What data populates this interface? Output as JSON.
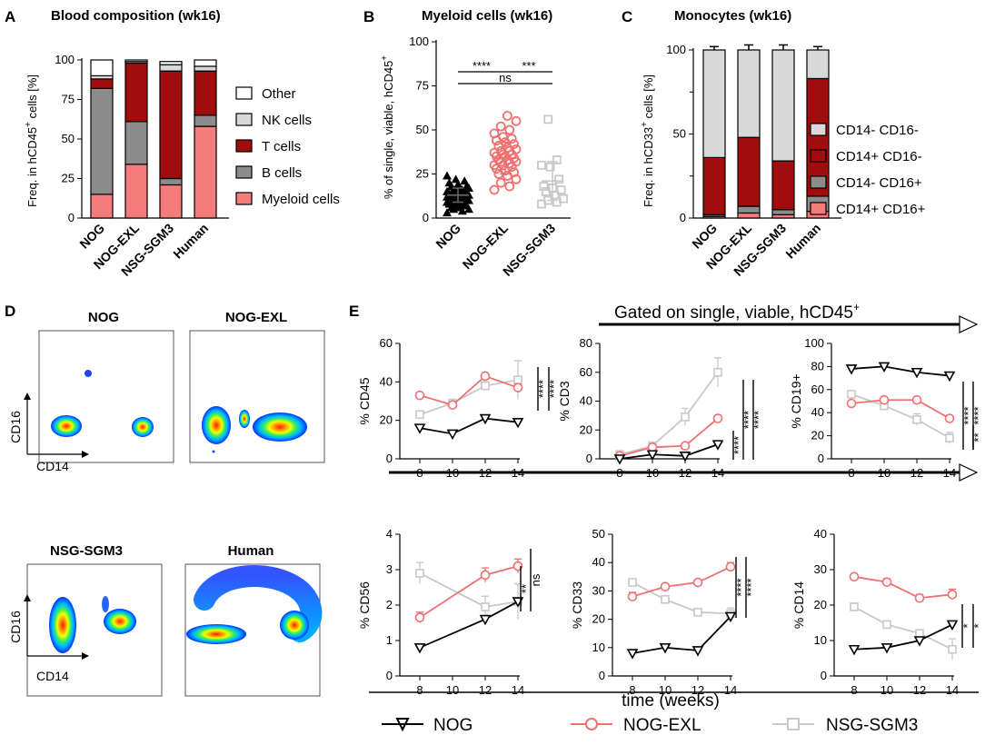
{
  "panels": {
    "A": {
      "label": "A",
      "title": "Blood composition (wk16)",
      "ylabel_main": "Freq. in hCD45",
      "ylabel_sup": "+",
      "ylabel_tail": " cells [%]",
      "legend_labels": [
        "Other",
        "NK cells",
        "T cells",
        "B cells",
        "Myeloid cells"
      ]
    },
    "B": {
      "label": "B",
      "title": "Myeloid cells (wk16)",
      "ylabel_main": "% of single, viable, hCD45",
      "ylabel_sup": "+",
      "sig_labels": [
        "****",
        "***",
        "ns"
      ]
    },
    "C": {
      "label": "C",
      "title": "Monocytes (wk16)",
      "ylabel_main": "Freq. in hCD33",
      "ylabel_sup": "+",
      "ylabel_tail": " cells [%]",
      "legend_labels": [
        "CD14- CD16-",
        "CD14+ CD16-",
        "CD14- CD16+",
        "CD14+ CD16+"
      ]
    },
    "D": {
      "label": "D",
      "titles": [
        "NOG",
        "NOG-EXL",
        "NSG-SGM3",
        "Human"
      ],
      "x_axis": "CD14",
      "y_axis": "CD16"
    },
    "E": {
      "label": "E",
      "gated_main": "Gated on single, viable, hCD45",
      "gated_sup": "+",
      "x_axis_label": "time (weeks)",
      "legend": [
        "NOG",
        "NOG-EXL",
        "NSG-SGM3"
      ]
    }
  },
  "colors": {
    "other": "#ffffff",
    "nk": "#d9d9d9",
    "tcells": "#a10c0c",
    "bcells": "#8c8c8c",
    "myeloid": "#f47c7c",
    "nog": "#000000",
    "exl": "#f07070",
    "sgm3": "#c8c8c8"
  },
  "chart_data": [
    {
      "id": "A",
      "type": "bar",
      "stacked": true,
      "title": "Blood composition (wk16)",
      "categories": [
        "NOG",
        "NOG-EXL",
        "NSG-SGM3",
        "Human"
      ],
      "ylim": [
        0,
        100
      ],
      "yticks": [
        0,
        25,
        50,
        75,
        100
      ],
      "series": [
        {
          "name": "Myeloid cells",
          "color": "myeloid",
          "values": [
            15,
            34,
            21,
            58
          ],
          "errors": [
            1.5,
            2,
            1.5,
            1
          ]
        },
        {
          "name": "B cells",
          "color": "bcells",
          "values": [
            67,
            27,
            4,
            7
          ],
          "errors": [
            1.5,
            2.5,
            1.5,
            1
          ]
        },
        {
          "name": "T cells",
          "color": "tcells",
          "values": [
            6,
            37,
            68,
            28
          ],
          "errors": [
            2,
            1.5,
            1.5,
            1
          ]
        },
        {
          "name": "NK cells",
          "color": "nk",
          "values": [
            2,
            1,
            4,
            3
          ],
          "errors": [
            0.5,
            0.5,
            1,
            0.5
          ]
        },
        {
          "name": "Other",
          "color": "other",
          "values": [
            10,
            1,
            2,
            4
          ],
          "errors": [
            0,
            0,
            0,
            0
          ]
        }
      ]
    },
    {
      "id": "B",
      "type": "scatter",
      "title": "Myeloid cells (wk16)",
      "categories": [
        "NOG",
        "NOG-EXL",
        "NSG-SGM3"
      ],
      "ylim": [
        0,
        100
      ],
      "yticks": [
        0,
        25,
        50,
        75,
        100
      ],
      "series": [
        {
          "name": "NOG",
          "marker": "triangle",
          "color": "nog",
          "mean": 13,
          "sd": 4,
          "values": [
            3,
            4,
            5,
            5,
            6,
            6,
            7,
            7,
            8,
            8,
            8,
            9,
            9,
            9,
            10,
            10,
            10,
            11,
            11,
            11,
            12,
            12,
            12,
            12,
            13,
            13,
            13,
            13,
            14,
            14,
            14,
            15,
            15,
            15,
            16,
            16,
            17,
            17,
            18,
            18,
            19,
            20,
            21,
            22,
            24
          ]
        },
        {
          "name": "NOG-EXL",
          "marker": "circle",
          "color": "exl",
          "mean": 34,
          "sd": 9,
          "values": [
            16,
            18,
            20,
            22,
            24,
            25,
            26,
            27,
            28,
            29,
            30,
            30,
            31,
            32,
            32,
            33,
            33,
            34,
            35,
            35,
            36,
            36,
            37,
            38,
            38,
            39,
            40,
            41,
            42,
            43,
            44,
            45,
            46,
            48,
            50,
            52,
            55,
            58
          ]
        },
        {
          "name": "NSG-SGM3",
          "marker": "square",
          "color": "sgm3",
          "mean": 21,
          "sd": 11,
          "values": [
            8,
            9,
            10,
            11,
            13,
            15,
            16,
            17,
            18,
            22,
            29,
            30,
            33,
            56
          ]
        }
      ],
      "significance": [
        {
          "from": 0,
          "to": 1,
          "label": "****",
          "level": 0
        },
        {
          "from": 1,
          "to": 2,
          "label": "***",
          "level": 0
        },
        {
          "from": 0,
          "to": 2,
          "label": "ns",
          "level": 1
        }
      ]
    },
    {
      "id": "C",
      "type": "bar",
      "stacked": true,
      "title": "Monocytes (wk16)",
      "categories": [
        "NOG",
        "NOG-EXL",
        "NSG-SGM3",
        "Human"
      ],
      "ylim": [
        0,
        100
      ],
      "yticks": [
        0,
        50,
        100
      ],
      "yticks_all": [
        0,
        25,
        50,
        75,
        100
      ],
      "series": [
        {
          "name": "CD14+ CD16+",
          "color": "myeloid",
          "values": [
            1,
            3,
            2,
            4
          ],
          "errors": [
            0.5,
            0.5,
            0.5,
            0.5
          ]
        },
        {
          "name": "CD14- CD16+",
          "color": "bcells",
          "values": [
            1,
            4,
            3,
            9
          ],
          "errors": [
            0.5,
            1.5,
            1,
            1.5
          ]
        },
        {
          "name": "CD14+ CD16-",
          "color": "tcells",
          "values": [
            34,
            41,
            29,
            70
          ],
          "errors": [
            2,
            4,
            3.5,
            1.5
          ]
        },
        {
          "name": "CD14- CD16-",
          "color": "nk",
          "values": [
            64,
            52,
            66,
            17
          ],
          "errors": [
            2,
            3,
            3,
            2
          ]
        }
      ]
    },
    {
      "id": "E-CD45",
      "type": "line",
      "ylabel": "% CD45",
      "x": [
        8,
        10,
        12,
        14
      ],
      "ylim": [
        0,
        60
      ],
      "yticks": [
        0,
        20,
        40,
        60
      ],
      "series": [
        {
          "name": "NOG",
          "values": [
            16,
            13,
            21,
            19
          ],
          "errors": [
            1,
            1,
            1,
            1
          ]
        },
        {
          "name": "NOG-EXL",
          "values": [
            33,
            28,
            43,
            37
          ],
          "errors": [
            1,
            1,
            1,
            2
          ]
        },
        {
          "name": "NSG-SGM3",
          "values": [
            23,
            29,
            38,
            41
          ],
          "errors": [
            1,
            1.5,
            2,
            10
          ]
        }
      ],
      "significance": [
        {
          "label": "****"
        },
        {
          "label": "****"
        }
      ]
    },
    {
      "id": "E-CD3",
      "type": "line",
      "ylabel": "% CD3",
      "x": [
        8,
        10,
        12,
        14
      ],
      "ylim": [
        0,
        80
      ],
      "yticks": [
        0,
        20,
        40,
        60,
        80
      ],
      "series": [
        {
          "name": "NOG",
          "values": [
            0,
            3,
            2,
            10
          ],
          "errors": [
            0.5,
            0.5,
            0.5,
            1
          ]
        },
        {
          "name": "NOG-EXL",
          "values": [
            2,
            8,
            9,
            28
          ],
          "errors": [
            0.5,
            1,
            1,
            2
          ]
        },
        {
          "name": "NSG-SGM3",
          "values": [
            3,
            9,
            29,
            60
          ],
          "errors": [
            1,
            2,
            6,
            10
          ]
        }
      ],
      "significance": [
        {
          "label": "****"
        },
        {
          "label": "****"
        },
        {
          "label": "****"
        }
      ]
    },
    {
      "id": "E-CD19",
      "type": "line",
      "ylabel": "% CD19+",
      "x": [
        8,
        10,
        12,
        14
      ],
      "ylim": [
        0,
        100
      ],
      "yticks": [
        0,
        20,
        40,
        60,
        80,
        100
      ],
      "series": [
        {
          "name": "NOG",
          "values": [
            78,
            80,
            75,
            72
          ],
          "errors": [
            1,
            1,
            1,
            1
          ]
        },
        {
          "name": "NOG-EXL",
          "values": [
            48,
            51,
            51,
            35
          ],
          "errors": [
            1,
            1,
            1,
            2
          ]
        },
        {
          "name": "NSG-SGM3",
          "values": [
            56,
            46,
            34,
            18
          ],
          "errors": [
            1,
            2,
            5,
            5
          ]
        }
      ],
      "significance": [
        {
          "label": "****"
        },
        {
          "label": "****"
        },
        {
          "label": "**"
        }
      ]
    },
    {
      "id": "E-CD56",
      "type": "line",
      "ylabel": "% CD56",
      "x": [
        8,
        10,
        12,
        14
      ],
      "ylim": [
        0,
        4
      ],
      "yticks": [
        0,
        1,
        2,
        3,
        4
      ],
      "series": [
        {
          "name": "NOG",
          "values": [
            0.8,
            null,
            1.6,
            2.1
          ],
          "errors": [
            0.05,
            0,
            0.1,
            0.1
          ]
        },
        {
          "name": "NOG-EXL",
          "values": [
            1.65,
            null,
            2.85,
            3.1
          ],
          "errors": [
            0.15,
            0,
            0.2,
            0.2
          ]
        },
        {
          "name": "NSG-SGM3",
          "values": [
            2.9,
            null,
            1.95,
            2.1
          ],
          "errors": [
            0.3,
            0,
            0.3,
            0.5
          ]
        }
      ],
      "significance": [
        {
          "label": "**"
        },
        {
          "label": "ns"
        }
      ]
    },
    {
      "id": "E-CD33",
      "type": "line",
      "ylabel": "% CD33",
      "x": [
        8,
        10,
        12,
        14
      ],
      "ylim": [
        0,
        50
      ],
      "yticks": [
        0,
        10,
        20,
        30,
        40,
        50
      ],
      "series": [
        {
          "name": "NOG",
          "values": [
            8,
            10,
            9,
            21
          ],
          "errors": [
            0.5,
            0.5,
            0.5,
            1
          ]
        },
        {
          "name": "NOG-EXL",
          "values": [
            28,
            31.5,
            33,
            38.5
          ],
          "errors": [
            1.5,
            1,
            1,
            1.5
          ]
        },
        {
          "name": "NSG-SGM3",
          "values": [
            33,
            27,
            22.5,
            22
          ],
          "errors": [
            1,
            1,
            1,
            2
          ]
        }
      ],
      "significance": [
        {
          "label": "****"
        },
        {
          "label": "****"
        }
      ]
    },
    {
      "id": "E-CD14",
      "type": "line",
      "ylabel": "% CD14",
      "x": [
        8,
        10,
        12,
        14
      ],
      "ylim": [
        0,
        40
      ],
      "yticks": [
        0,
        10,
        20,
        30,
        40
      ],
      "series": [
        {
          "name": "NOG",
          "values": [
            7.5,
            8,
            10,
            14.5
          ],
          "errors": [
            0.3,
            0.3,
            0.5,
            0.8
          ]
        },
        {
          "name": "NOG-EXL",
          "values": [
            28,
            26.5,
            22,
            23
          ],
          "errors": [
            0.8,
            1,
            1,
            1.5
          ]
        },
        {
          "name": "NSG-SGM3",
          "values": [
            19.5,
            14.5,
            12,
            7.5
          ],
          "errors": [
            0.8,
            1,
            1,
            3
          ]
        }
      ],
      "significance": [
        {
          "label": "*"
        },
        {
          "label": "*"
        }
      ]
    }
  ]
}
